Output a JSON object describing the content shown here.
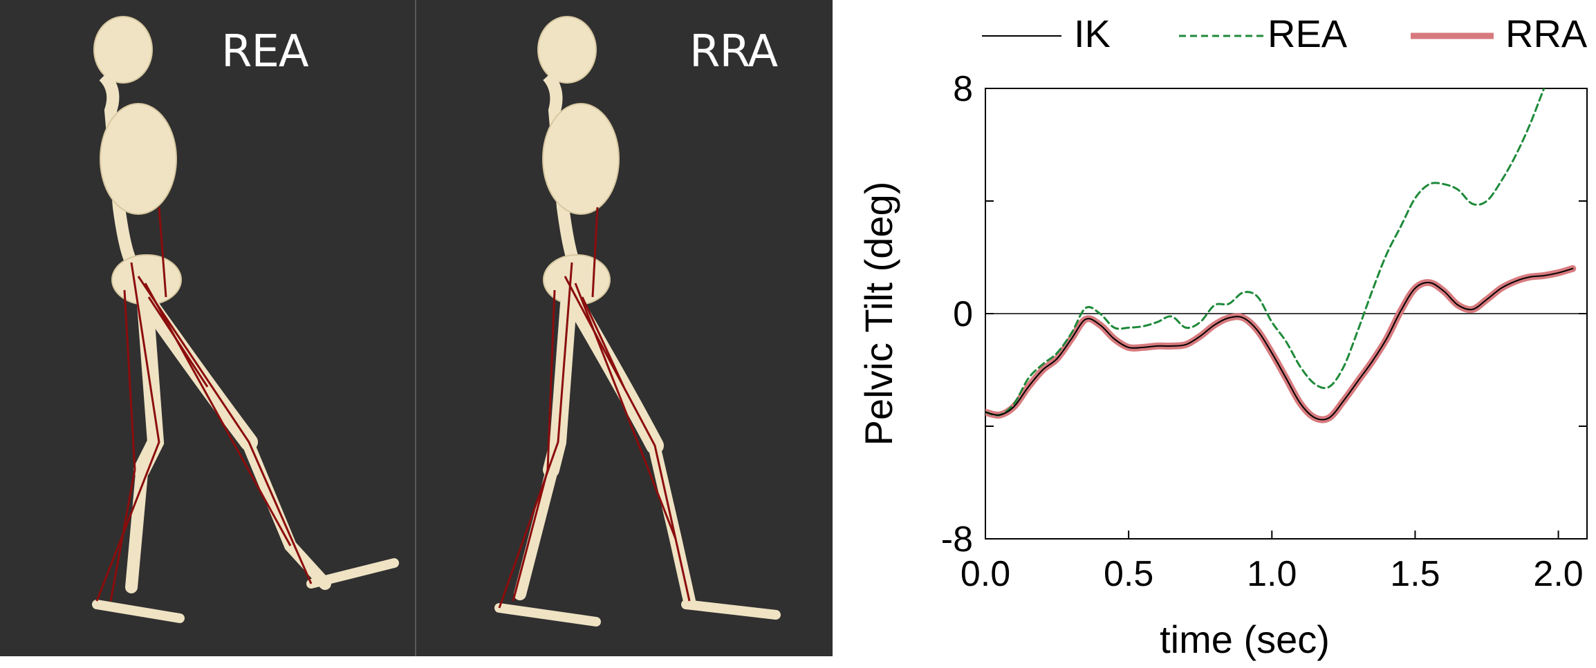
{
  "panels": [
    {
      "label": "REA"
    },
    {
      "label": "RRA"
    }
  ],
  "colors": {
    "background_panel": "#303030",
    "bone": "#efe3c4",
    "muscle": "#8b0d0d",
    "ik": "#000000",
    "rea": "#1e8a3a",
    "rra": "#d77a7e"
  },
  "chart_data": {
    "type": "line",
    "xlabel": "time (sec)",
    "ylabel": "Pelvic Tilt (deg)",
    "xlim": [
      0.0,
      2.1
    ],
    "ylim": [
      -8,
      8
    ],
    "xticks": [
      "0.0",
      "0.5",
      "1.0",
      "1.5",
      "2.0"
    ],
    "yticks": [
      "8",
      "0",
      "-8"
    ],
    "yminor_ticks": [
      4,
      -4
    ],
    "zero_line": true,
    "legend": "top",
    "series": [
      {
        "name": "IK",
        "style": "solid-thin",
        "x": [
          0.0,
          0.05,
          0.1,
          0.15,
          0.2,
          0.25,
          0.3,
          0.35,
          0.4,
          0.45,
          0.5,
          0.55,
          0.6,
          0.65,
          0.7,
          0.75,
          0.8,
          0.85,
          0.9,
          0.95,
          1.0,
          1.05,
          1.1,
          1.15,
          1.2,
          1.25,
          1.3,
          1.35,
          1.4,
          1.45,
          1.5,
          1.55,
          1.6,
          1.65,
          1.7,
          1.75,
          1.8,
          1.85,
          1.9,
          1.95,
          2.0,
          2.05
        ],
        "y": [
          -3.5,
          -3.6,
          -3.3,
          -2.6,
          -2.0,
          -1.6,
          -0.9,
          -0.2,
          -0.4,
          -0.9,
          -1.2,
          -1.2,
          -1.15,
          -1.15,
          -1.1,
          -0.8,
          -0.4,
          -0.15,
          -0.15,
          -0.6,
          -1.4,
          -2.3,
          -3.2,
          -3.7,
          -3.7,
          -3.1,
          -2.4,
          -1.7,
          -0.9,
          0.1,
          0.9,
          1.1,
          0.8,
          0.3,
          0.15,
          0.5,
          0.9,
          1.15,
          1.3,
          1.35,
          1.45,
          1.6
        ]
      },
      {
        "name": "REA",
        "style": "dashed",
        "x": [
          0.0,
          0.05,
          0.1,
          0.15,
          0.2,
          0.25,
          0.3,
          0.35,
          0.4,
          0.45,
          0.5,
          0.55,
          0.6,
          0.65,
          0.7,
          0.75,
          0.8,
          0.85,
          0.9,
          0.95,
          1.0,
          1.05,
          1.1,
          1.15,
          1.2,
          1.25,
          1.3,
          1.35,
          1.4,
          1.45,
          1.5,
          1.55,
          1.6,
          1.65,
          1.7,
          1.75,
          1.8,
          1.85,
          1.9,
          1.95,
          2.0
        ],
        "y": [
          -3.5,
          -3.6,
          -3.2,
          -2.3,
          -1.8,
          -1.4,
          -0.7,
          0.2,
          0.0,
          -0.5,
          -0.5,
          -0.45,
          -0.3,
          -0.1,
          -0.5,
          -0.3,
          0.3,
          0.35,
          0.75,
          0.6,
          -0.3,
          -1.0,
          -1.9,
          -2.5,
          -2.6,
          -1.9,
          -0.6,
          0.8,
          2.1,
          3.1,
          4.1,
          4.6,
          4.6,
          4.4,
          3.9,
          4.0,
          4.7,
          5.6,
          6.7,
          8.0,
          9.2
        ]
      },
      {
        "name": "RRA",
        "style": "solid-thick",
        "x": [
          0.0,
          0.05,
          0.1,
          0.15,
          0.2,
          0.25,
          0.3,
          0.35,
          0.4,
          0.45,
          0.5,
          0.55,
          0.6,
          0.65,
          0.7,
          0.75,
          0.8,
          0.85,
          0.9,
          0.95,
          1.0,
          1.05,
          1.1,
          1.15,
          1.2,
          1.25,
          1.3,
          1.35,
          1.4,
          1.45,
          1.5,
          1.55,
          1.6,
          1.65,
          1.7,
          1.75,
          1.8,
          1.85,
          1.9,
          1.95,
          2.0,
          2.05
        ],
        "y": [
          -3.5,
          -3.6,
          -3.3,
          -2.6,
          -2.0,
          -1.6,
          -0.9,
          -0.2,
          -0.4,
          -0.9,
          -1.2,
          -1.2,
          -1.15,
          -1.15,
          -1.1,
          -0.8,
          -0.4,
          -0.15,
          -0.15,
          -0.6,
          -1.4,
          -2.3,
          -3.2,
          -3.7,
          -3.7,
          -3.1,
          -2.4,
          -1.7,
          -0.9,
          0.1,
          0.9,
          1.1,
          0.8,
          0.3,
          0.15,
          0.5,
          0.9,
          1.15,
          1.3,
          1.35,
          1.45,
          1.6
        ]
      }
    ]
  }
}
